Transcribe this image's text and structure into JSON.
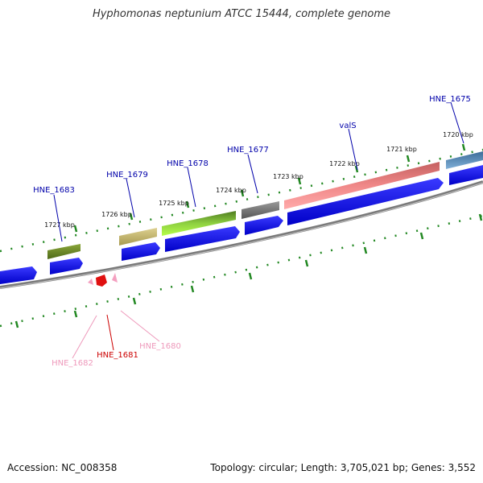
{
  "title": "Hyphomonas neptunium ATCC 15444, complete genome",
  "footer": {
    "accession": "Accession: NC_008358",
    "summary": "Topology: circular; Length: 3,705,021 bp; Genes: 3,552"
  },
  "colors": {
    "label_blue": "#0000aa",
    "label_red": "#cc0000",
    "label_pink": "#ee99bb",
    "tick_green": "#228822",
    "cds_blue": "#0000ee",
    "backbone": "#888888"
  },
  "ticks": [
    "1720 kbp",
    "1721 kbp",
    "1722 kbp",
    "1723 kbp",
    "1724 kbp",
    "1725 kbp",
    "1726 kbp",
    "1727 kbp"
  ],
  "gene_labels": [
    {
      "id": "HNE_1675",
      "text": "HNE_1675",
      "style": "blue"
    },
    {
      "id": "valS",
      "text": "valS",
      "style": "blue"
    },
    {
      "id": "HNE_1677",
      "text": "HNE_1677",
      "style": "blue"
    },
    {
      "id": "HNE_1678",
      "text": "HNE_1678",
      "style": "blue"
    },
    {
      "id": "HNE_1679",
      "text": "HNE_1679",
      "style": "blue"
    },
    {
      "id": "HNE_1683",
      "text": "HNE_1683",
      "style": "blue"
    },
    {
      "id": "HNE_1680",
      "text": "HNE_1680",
      "style": "pink"
    },
    {
      "id": "HNE_1681",
      "text": "HNE_1681",
      "style": "red"
    },
    {
      "id": "HNE_1682",
      "text": "HNE_1682",
      "style": "pink"
    }
  ]
}
